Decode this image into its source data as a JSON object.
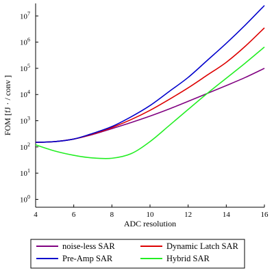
{
  "chart_data": {
    "type": "line",
    "title": "",
    "xlabel": "ADC resolution",
    "ylabel": "FOM [fJ · / conv ]",
    "x_ticks": [
      "4",
      "6",
      "8",
      "10",
      "12",
      "14",
      "16"
    ],
    "xlim": [
      4,
      16
    ],
    "y_scale": "log",
    "ylim": [
      0.5,
      30000000
    ],
    "y_tick_exponents": [
      "0",
      "1",
      "2",
      "3",
      "4",
      "5",
      "6",
      "7"
    ],
    "y_tick_base": "10",
    "grid": false,
    "legend_position": "bottom",
    "x": [
      4,
      5,
      6,
      7,
      8,
      9,
      10,
      11,
      12,
      13,
      14,
      15,
      16
    ],
    "series": [
      {
        "name": "noise-less SAR",
        "color": "#800080",
        "values": [
          150,
          160,
          200,
          300,
          500,
          850,
          1500,
          2800,
          5500,
          11000,
          22000,
          45000,
          100000
        ]
      },
      {
        "name": "Dynamic Latch SAR",
        "color": "#dd0000",
        "values": [
          150,
          160,
          200,
          310,
          550,
          1100,
          2500,
          6500,
          18000,
          55000,
          170000,
          700000,
          3500000
        ]
      },
      {
        "name": "Pre-Amp SAR",
        "color": "#0000cc",
        "values": [
          150,
          160,
          200,
          330,
          600,
          1400,
          3800,
          13000,
          45000,
          200000,
          900000,
          4500000,
          25000000
        ]
      },
      {
        "name": "Hybrid SAR",
        "color": "#22ee22",
        "values": [
          120,
          70,
          48,
          38,
          37,
          55,
          160,
          650,
          2700,
          11000,
          42000,
          160000,
          650000
        ]
      }
    ]
  }
}
